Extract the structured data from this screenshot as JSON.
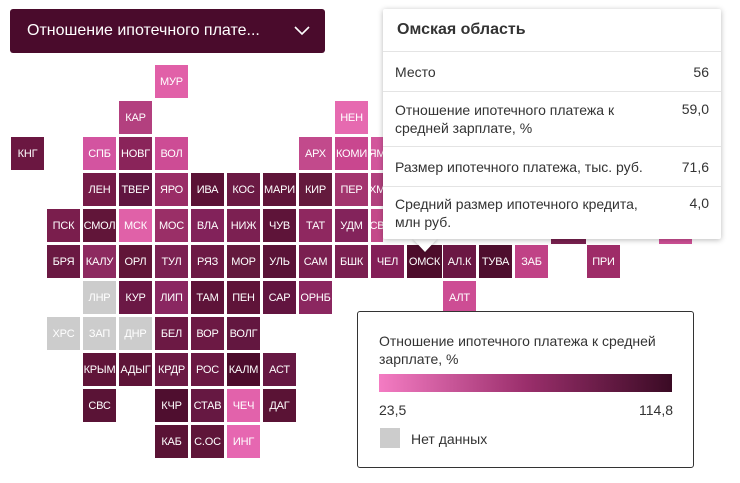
{
  "dropdown": {
    "label": "Отношение ипотечного плате...",
    "icon": "chevron-down-icon"
  },
  "tooltip": {
    "title": "Омская область",
    "rows": [
      {
        "label": "Место",
        "value": "56"
      },
      {
        "label": "Отношение ипотечного платежа к средней зарплате, %",
        "value": "59,0"
      },
      {
        "label": "Размер ипотечного платежа, тыс. руб.",
        "value": "71,6"
      },
      {
        "label": "Средний размер ипотечного кредита, млн руб.",
        "value": "4,0"
      }
    ]
  },
  "legend": {
    "title": "Отношение ипотечного платежа к средней зарплате, %",
    "min": "23,5",
    "max": "114,8",
    "no_data": "Нет данных",
    "no_data_color": "#cccccc",
    "gradient": [
      "#f47cc3",
      "#9b2f6c",
      "#3a0a24"
    ]
  },
  "tiles": [
    {
      "label": "МУР",
      "color": "#e160a8"
    },
    {
      "label": "КАР",
      "color": "#b3407f"
    },
    {
      "label": "НЕН",
      "color": "#e66ab0"
    },
    {
      "label": "КНГ",
      "color": "#6b1741"
    },
    {
      "label": "СПБ",
      "color": "#d354a0"
    },
    {
      "label": "НОВГ",
      "color": "#8a245a"
    },
    {
      "label": "ВОЛ",
      "color": "#cd4c95"
    },
    {
      "label": "АРХ",
      "color": "#c24a8c"
    },
    {
      "label": "КОМИ",
      "color": "#c9478f"
    },
    {
      "label": "ЯМ",
      "color": "#d2569c"
    },
    {
      "label": "ЛЕН",
      "color": "#751b48"
    },
    {
      "label": "ТВЕР",
      "color": "#601540"
    },
    {
      "label": "ЯРО",
      "color": "#9a2d66"
    },
    {
      "label": "ИВА",
      "color": "#5b1236"
    },
    {
      "label": "КОС",
      "color": "#6b1a44"
    },
    {
      "label": "МАРИ",
      "color": "#5f1539"
    },
    {
      "label": "КИР",
      "color": "#641a3d"
    },
    {
      "label": "ПЕР",
      "color": "#a3356e"
    },
    {
      "label": "ХМ",
      "color": "#b2417e"
    },
    {
      "label": "ПСК",
      "color": "#7a1e4d"
    },
    {
      "label": "СМОЛ",
      "color": "#611539"
    },
    {
      "label": "МСК",
      "color": "#e061a8"
    },
    {
      "label": "МОС",
      "color": "#9a2f67"
    },
    {
      "label": "ВЛА",
      "color": "#82225a"
    },
    {
      "label": "НИЖ",
      "color": "#7c2052"
    },
    {
      "label": "ЧУВ",
      "color": "#5e1439"
    },
    {
      "label": "ТАТ",
      "color": "#8f2860"
    },
    {
      "label": "УДМ",
      "color": "#83235b"
    },
    {
      "label": "СВ",
      "color": "#c44a8a"
    },
    {
      "label": "БРЯ",
      "color": "#6a1842"
    },
    {
      "label": "КАЛУ",
      "color": "#8d2a60"
    },
    {
      "label": "ОРЛ",
      "color": "#611538"
    },
    {
      "label": "ТУЛ",
      "color": "#7b2152"
    },
    {
      "label": "РЯЗ",
      "color": "#6d1945"
    },
    {
      "label": "МОР",
      "color": "#641a3e"
    },
    {
      "label": "УЛЬ",
      "color": "#5a1337"
    },
    {
      "label": "САМ",
      "color": "#7a1f50"
    },
    {
      "label": "БШК",
      "color": "#7a1f50"
    },
    {
      "label": "ЧЕЛ",
      "color": "#831f58"
    },
    {
      "label": "ОМСК",
      "color": "#4d0c2b"
    },
    {
      "label": "АЛ.К",
      "color": "#6b1744"
    },
    {
      "label": "ТУВА",
      "color": "#4e0e2e"
    },
    {
      "label": "ЗАБ",
      "color": "#c04286"
    },
    {
      "label": "ПРИ",
      "color": "#9e2c68"
    },
    {
      "label": "ЛНР",
      "color": "#cccccc"
    },
    {
      "label": "КУР",
      "color": "#6b1845"
    },
    {
      "label": "ЛИП",
      "color": "#8a2761"
    },
    {
      "label": "ТАМ",
      "color": "#5e1339"
    },
    {
      "label": "ПЕН",
      "color": "#5f1439"
    },
    {
      "label": "САР",
      "color": "#621540"
    },
    {
      "label": "ОРНБ",
      "color": "#8b2760"
    },
    {
      "label": "АЛТ",
      "color": "#cd4d94"
    },
    {
      "label": "ХРС",
      "color": "#cccccc"
    },
    {
      "label": "ЗАП",
      "color": "#cccccc"
    },
    {
      "label": "ДНР",
      "color": "#cccccc"
    },
    {
      "label": "БЕЛ",
      "color": "#6c1944"
    },
    {
      "label": "ВОР",
      "color": "#6c1944"
    },
    {
      "label": "ВОЛГ",
      "color": "#631740"
    },
    {
      "label": "КРЫМ",
      "color": "#601439"
    },
    {
      "label": "АДЫГ",
      "color": "#5e1438"
    },
    {
      "label": "КРДР",
      "color": "#6b1a44"
    },
    {
      "label": "РОС",
      "color": "#6a1843"
    },
    {
      "label": "КАЛМ",
      "color": "#4c0c2c"
    },
    {
      "label": "АСТ",
      "color": "#661843"
    },
    {
      "label": "СВС",
      "color": "#5a1336"
    },
    {
      "label": "КЧР",
      "color": "#4f0e2f"
    },
    {
      "label": "СТАВ",
      "color": "#661842"
    },
    {
      "label": "ЧЕЧ",
      "color": "#e262ab"
    },
    {
      "label": "ДАГ",
      "color": "#5a1335"
    },
    {
      "label": "КАБ",
      "color": "#5a1335"
    },
    {
      "label": "С.ОС",
      "color": "#5f1539"
    },
    {
      "label": "ИНГ",
      "color": "#e667b1"
    }
  ]
}
